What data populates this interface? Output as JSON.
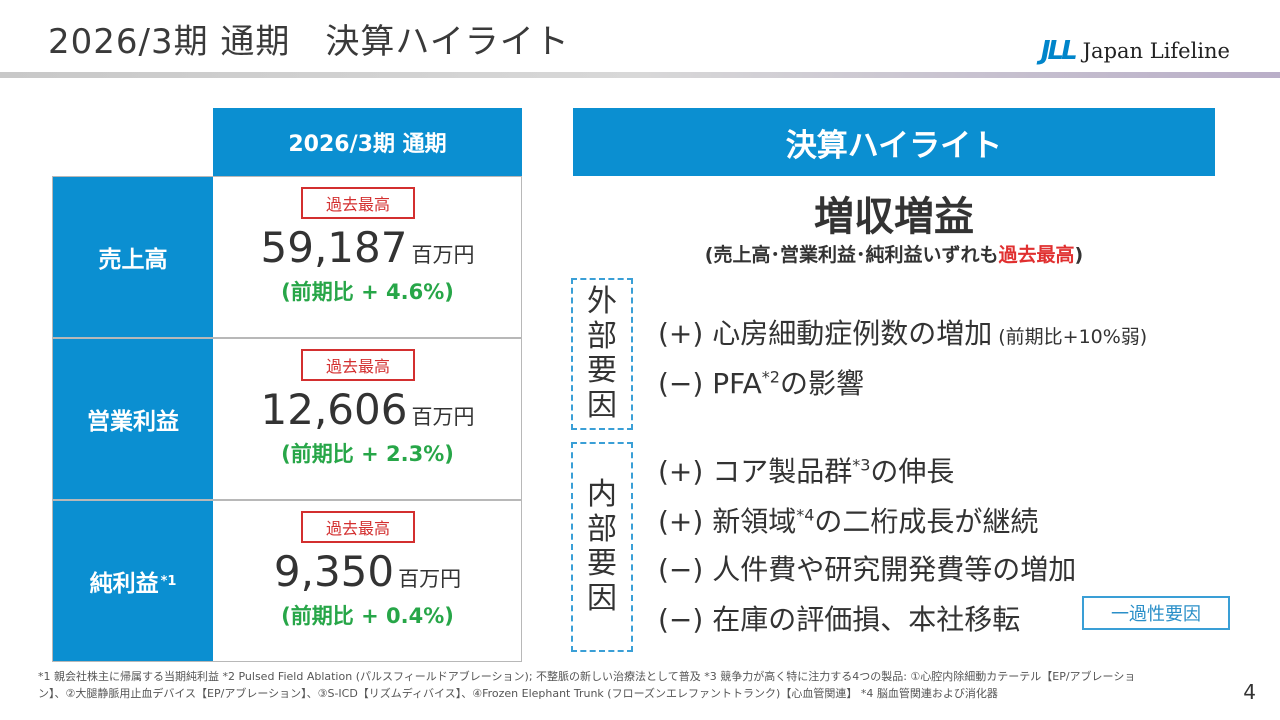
{
  "title": "2026/3期 通期　決算ハイライト",
  "logo": {
    "mark": "JLL",
    "text": "Japan Lifeline"
  },
  "table": {
    "header": "2026/3期 通期",
    "rows": [
      {
        "label": "売上高",
        "sup": "",
        "badge": "過去最高",
        "value": "59,187",
        "unit": "百万円",
        "change": "(前期比 + 4.6%)"
      },
      {
        "label": "営業利益",
        "sup": "",
        "badge": "過去最高",
        "value": "12,606",
        "unit": "百万円",
        "change": "(前期比 + 2.3%)"
      },
      {
        "label": "純利益",
        "sup": "*1",
        "badge": "過去最高",
        "value": "9,350",
        "unit": "百万円",
        "change": "(前期比 + 0.4%)"
      }
    ]
  },
  "highlight": {
    "header": "決算ハイライト",
    "main": "増収増益",
    "sub_prefix": "(売上高･営業利益･純利益いずれも",
    "sub_red": "過去最高",
    "sub_suffix": ")",
    "external_label": [
      "外",
      "部",
      "要",
      "因"
    ],
    "internal_label": [
      "内",
      "部",
      "要",
      "因"
    ],
    "external_items": [
      {
        "sign": "(+)",
        "text": "心房細動症例数の増加",
        "sup": "",
        "text2": "",
        "note": "(前期比+10%弱)"
      },
      {
        "sign": "(−)",
        "text": "PFA",
        "sup": "*2",
        "text2": "の影響",
        "note": ""
      }
    ],
    "internal_items": [
      {
        "sign": "(+)",
        "text": "コア製品群",
        "sup": "*3",
        "text2": "の伸長"
      },
      {
        "sign": "(+)",
        "text": "新領域",
        "sup": "*4",
        "text2": "の二桁成長が継続"
      },
      {
        "sign": "(−)",
        "text": "人件費や研究開発費等の増加",
        "sup": "",
        "text2": ""
      },
      {
        "sign": "(−)",
        "text": "在庫の評価損、本社移転",
        "sup": "",
        "text2": ""
      }
    ],
    "tag": "一過性要因"
  },
  "footnote_line1": "*1 親会社株主に帰属する当期純利益 *2 Pulsed Field Ablation (パルスフィールドアブレーション); 不整脈の新しい治療法として普及 *3 競争力が高く特に注力する4つの製品: ①心腔内除細動カテーテル【EP/アブレーショ",
  "footnote_line2": "ン】、②大腿静脈用止血デバイス【EP/アブレーション】、③S-ICD【リズムディバイス】、④Frozen Elephant Trunk (フローズンエレファントトランク)【心血管関連】 *4 脳血管関連および消化器",
  "page_number": "4"
}
